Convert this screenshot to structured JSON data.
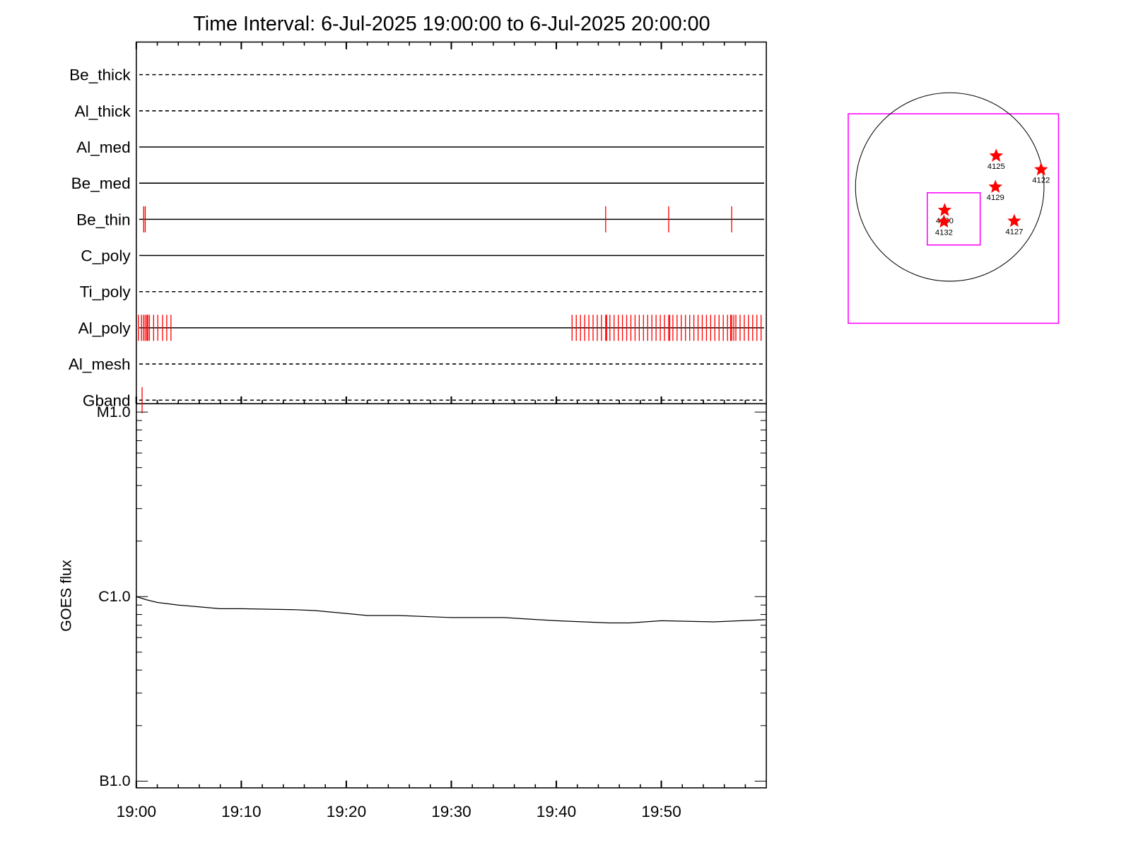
{
  "chart_data": [
    {
      "type": "timeline",
      "title": "Time Interval:  6-Jul-2025 19:00:00 to  6-Jul-2025 20:00:00",
      "xlim": [
        0,
        60
      ],
      "xticks": [
        0,
        10,
        20,
        30,
        40,
        50
      ],
      "xminor_ticks": [
        2,
        4,
        6,
        8,
        12,
        14,
        16,
        18,
        22,
        24,
        26,
        28,
        32,
        34,
        36,
        38,
        42,
        44,
        46,
        48,
        52,
        54,
        56,
        58
      ],
      "event_color": "#ff0000",
      "rows": [
        {
          "name": "Be_thick",
          "style": "dashed",
          "events": []
        },
        {
          "name": "Al_thick",
          "style": "dashed",
          "events": []
        },
        {
          "name": "Al_med",
          "style": "solid",
          "events": []
        },
        {
          "name": "Be_med",
          "style": "solid",
          "events": []
        },
        {
          "name": "Be_thin",
          "style": "solid",
          "events": [
            0.7,
            0.85,
            44.7,
            50.7,
            56.7
          ]
        },
        {
          "name": "C_poly",
          "style": "solid",
          "events": []
        },
        {
          "name": "Ti_poly",
          "style": "dashed",
          "events": []
        },
        {
          "name": "Al_poly",
          "style": "solid",
          "events": [
            0.2,
            0.5,
            0.7,
            0.85,
            1.0,
            1.1,
            1.25,
            1.65,
            2.05,
            2.5,
            2.9,
            3.3,
            41.5,
            41.9,
            42.3,
            42.7,
            43.1,
            43.5,
            43.9,
            44.3,
            44.7,
            44.8,
            45.1,
            45.5,
            45.9,
            46.3,
            46.7,
            47.1,
            47.5,
            47.9,
            48.3,
            48.7,
            49.1,
            49.5,
            49.9,
            50.3,
            50.7,
            50.8,
            51.1,
            51.5,
            51.9,
            52.3,
            52.7,
            53.1,
            53.5,
            53.9,
            54.3,
            54.7,
            55.1,
            55.5,
            55.9,
            56.3,
            56.6,
            56.7,
            56.9,
            57.1,
            57.5,
            57.9,
            58.3,
            58.7,
            59.1,
            59.5
          ]
        },
        {
          "name": "Al_mesh",
          "style": "dashed",
          "events": []
        },
        {
          "name": "Gband",
          "style": "dashed",
          "events": [
            0.55
          ]
        }
      ]
    },
    {
      "type": "line",
      "ylabel": "GOES flux",
      "log_scale": true,
      "color": "#000000",
      "xlim": [
        0,
        60
      ],
      "xticks": [
        {
          "value": 0,
          "label": "19:00"
        },
        {
          "value": 10,
          "label": "19:10"
        },
        {
          "value": 20,
          "label": "19:20"
        },
        {
          "value": 30,
          "label": "19:30"
        },
        {
          "value": 40,
          "label": "19:40"
        },
        {
          "value": 50,
          "label": "19:50"
        }
      ],
      "xminor_ticks": [
        2,
        4,
        6,
        8,
        12,
        14,
        16,
        18,
        22,
        24,
        26,
        28,
        32,
        34,
        36,
        38,
        42,
        44,
        46,
        48,
        52,
        54,
        56,
        58
      ],
      "ylim": [
        9.2e-08,
        1.11e-05
      ],
      "yticks": [
        {
          "value": 1e-07,
          "label": "B1.0"
        },
        {
          "value": 1e-06,
          "label": "C1.0"
        },
        {
          "value": 1e-05,
          "label": "M1.0"
        }
      ],
      "yminor_ticks": [
        2e-07,
        3e-07,
        4e-07,
        5e-07,
        6e-07,
        7e-07,
        8e-07,
        9e-07,
        2e-06,
        3e-06,
        4e-06,
        5e-06,
        6e-06,
        7e-06,
        8e-06,
        9e-06
      ],
      "x": [
        0,
        1,
        2,
        4,
        6,
        8,
        10,
        15,
        17,
        20,
        22,
        25,
        30,
        35,
        40,
        45,
        47,
        50,
        55,
        59.9
      ],
      "values": [
        1e-06,
        9.6e-07,
        9.3e-07,
        9e-07,
        8.8e-07,
        8.6e-07,
        8.6e-07,
        8.5e-07,
        8.4e-07,
        8.1e-07,
        7.9e-07,
        7.9e-07,
        7.7e-07,
        7.7e-07,
        7.4e-07,
        7.2e-07,
        7.2e-07,
        7.4e-07,
        7.3e-07,
        7.5e-07
      ]
    }
  ],
  "map": {
    "regions": [
      "4125",
      "4122",
      "4129",
      "4130",
      "4132",
      "4127"
    ]
  }
}
